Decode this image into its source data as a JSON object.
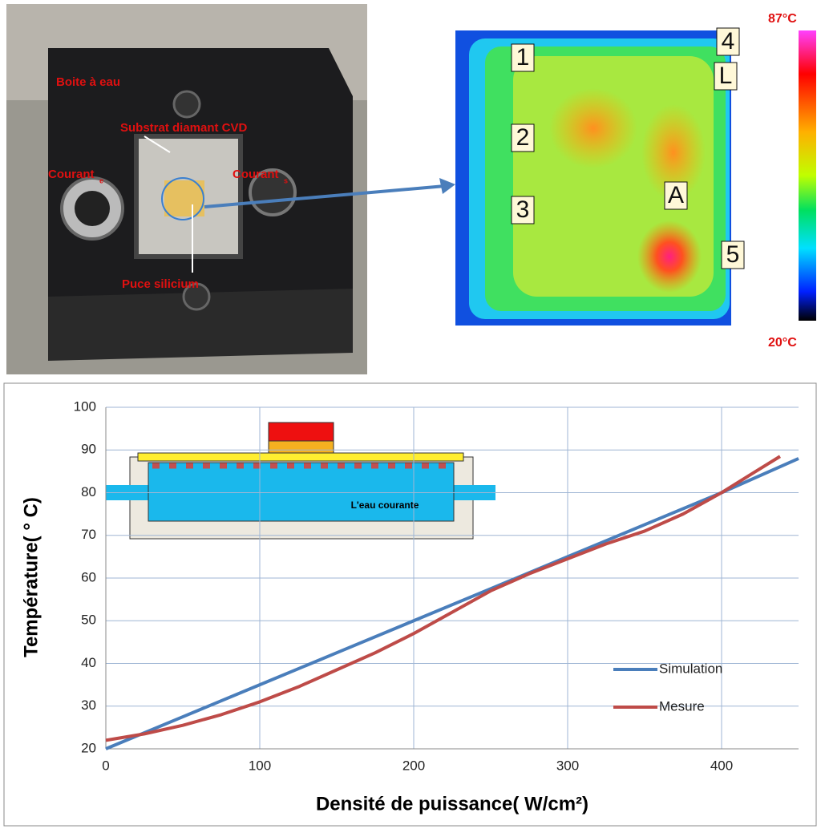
{
  "photo": {
    "labels": {
      "water_box": "Boite à eau",
      "substrate": "Substrat diamant CVD",
      "current_in": "Courant",
      "current_in_sub": "e",
      "current_out": "Courant",
      "current_out_sub": "s",
      "chip": "Puce silicium"
    }
  },
  "thermal": {
    "max_label": "87°C",
    "min_label": "20°C",
    "markers": [
      "1",
      "2",
      "3",
      "4",
      "L",
      "A",
      "5"
    ]
  },
  "chart_data": {
    "type": "line",
    "y_label": "Température( °  C)",
    "x_label": "Densité de puissance( W/cm²)",
    "inset_label": "L'eau courante",
    "xlim": [
      0,
      450
    ],
    "xticks": [
      0,
      100,
      200,
      300,
      400
    ],
    "ylim": [
      20,
      100
    ],
    "yticks": [
      20,
      30,
      40,
      50,
      60,
      70,
      80,
      90,
      100
    ],
    "grid": true,
    "legend": "right",
    "series": [
      {
        "name": "Simulation",
        "color": "#4a7ebb",
        "x": [
          0,
          50,
          100,
          150,
          200,
          250,
          300,
          350,
          400,
          450
        ],
        "values": [
          20,
          27.5,
          35,
          42.5,
          50,
          57.5,
          65,
          72.5,
          80,
          88
        ]
      },
      {
        "name": "Mesure",
        "color": "#be4b48",
        "x": [
          0,
          25,
          50,
          75,
          100,
          125,
          150,
          175,
          200,
          225,
          250,
          275,
          300,
          325,
          350,
          375,
          400,
          420,
          438
        ],
        "values": [
          22,
          23.5,
          25.5,
          28,
          31,
          34.5,
          38.5,
          42.5,
          47,
          52,
          57,
          61,
          64.5,
          68,
          71,
          75,
          80,
          84.5,
          88.5
        ]
      }
    ]
  }
}
